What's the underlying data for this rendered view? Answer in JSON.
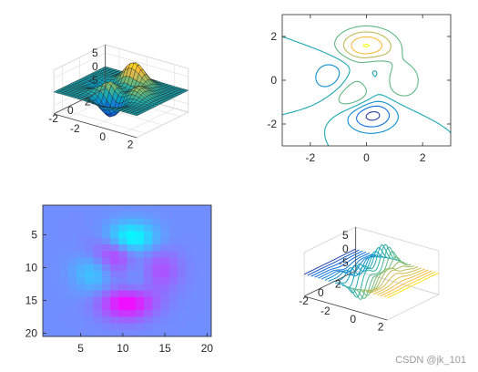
{
  "chart_data": [
    {
      "type": "surface",
      "function": "peaks",
      "grid_points": 25,
      "x_range": [
        -3,
        3
      ],
      "y_range": [
        -3,
        3
      ],
      "z_ticks": [
        "5",
        "0",
        "-5"
      ],
      "x_ticks": [
        "-2",
        "0",
        "2"
      ],
      "y_ticks": [
        "2",
        "0",
        "-2"
      ],
      "colormap": "parula",
      "grid": true
    },
    {
      "type": "contour",
      "function": "peaks",
      "x_range": [
        -3,
        3
      ],
      "y_range": [
        -3,
        3
      ],
      "levels": [
        -6,
        -4,
        -2,
        0,
        2,
        4,
        6,
        8
      ],
      "x_ticks": [
        "-2",
        "0",
        "2"
      ],
      "y_ticks": [
        "2",
        "0",
        "-2"
      ],
      "colormap": "parula"
    },
    {
      "type": "heatmap",
      "function": "peaks",
      "grid_points": 20,
      "x_ticks": [
        "5",
        "10",
        "15",
        "20"
      ],
      "y_ticks": [
        "5",
        "10",
        "15",
        "20"
      ],
      "colormap": "cool"
    },
    {
      "type": "waterfall",
      "function": "peaks",
      "grid_points": 25,
      "x_range": [
        -3,
        3
      ],
      "y_range": [
        -3,
        3
      ],
      "z_ticks": [
        "5",
        "0",
        "-5"
      ],
      "x_ticks": [
        "-2",
        "0",
        "2"
      ],
      "y_ticks": [
        "2",
        "0",
        "-2"
      ],
      "colormap": "parula"
    }
  ],
  "watermark": "CSDN @jk_101"
}
